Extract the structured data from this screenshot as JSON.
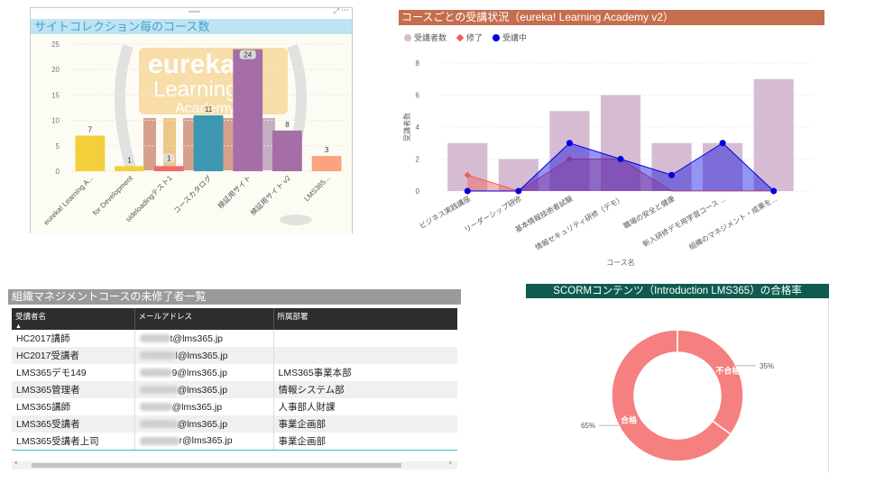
{
  "chart_data": [
    {
      "type": "bar",
      "title": "サイトコレクション毎のコース数",
      "categories": [
        "eureka! Learning A...",
        "for Development",
        "sideloadingテスト1",
        "コースカタログ",
        "検証用サイト",
        "検証用サイト v2",
        "LMS365..."
      ],
      "values": [
        7,
        1,
        1,
        11,
        24,
        8,
        3
      ],
      "colors": [
        "#f2cf3b",
        "#f2cf3b",
        "#f06a6a",
        "#3d97b2",
        "#a66ea6",
        "#a66ea6",
        "#f9a47f"
      ],
      "yticks": [
        "0",
        "5",
        "10",
        "15",
        "20",
        "25"
      ],
      "ylim": [
        0,
        25
      ],
      "grid": true
    },
    {
      "type": "bar+line",
      "title": "コースごとの受講状況（eureka! Learning Academy v2）",
      "xlabel": "コース名",
      "ylabel": "受講者数",
      "categories": [
        "ビジネス実践講座",
        "リーダーシップ研修",
        "基本情報技術者試験",
        "情報セキュリティ研修（デモ）",
        "職場の安全と健康",
        "新入研修デモ用学習コース ...",
        "組織のマネジメント・成果を..."
      ],
      "yticks": [
        "0",
        "2",
        "4",
        "6",
        "8"
      ],
      "ylim": [
        0,
        8
      ],
      "legend_position": "top-left",
      "series": [
        {
          "name": "受講者数",
          "kind": "bar",
          "color": "#d6bcd2",
          "values": [
            3,
            2,
            5,
            6,
            3,
            3,
            7
          ]
        },
        {
          "name": "修了",
          "kind": "area",
          "color": "#f05a5a",
          "values": [
            1,
            0,
            2,
            2,
            0,
            0,
            0
          ]
        },
        {
          "name": "受講中",
          "kind": "area",
          "color": "#0000e0",
          "values": [
            0,
            0,
            3,
            2,
            1,
            3,
            0
          ]
        }
      ]
    },
    {
      "type": "pie",
      "title": "SCORMコンテンツ（Introduction LMS365）の合格率",
      "slices": [
        {
          "label": "不合格",
          "value": 35,
          "pct_label": "35%",
          "color": "#f67f7f"
        },
        {
          "label": "合格",
          "value": 65,
          "pct_label": "65%",
          "color": "#f67f7f"
        }
      ]
    }
  ],
  "logo": {
    "line1": "eureka!",
    "line2": "Learning",
    "line3": "Academy"
  },
  "header_icons": {
    "grip": "drag-handle-icon",
    "focus": "focus-mode-icon",
    "more": "more-options-icon"
  },
  "table": {
    "title": "組織マネジメントコースの未修了者一覧",
    "columns": [
      "受講者名",
      "メールアドレス",
      "所属部署"
    ],
    "sort_indicator": "▲",
    "rows": [
      {
        "name": "HC2017講師",
        "email": "t@lms365.jp",
        "dept": ""
      },
      {
        "name": "HC2017受講者",
        "email": "l@lms365.jp",
        "dept": ""
      },
      {
        "name": "LMS365デモ149",
        "email": "9@lms365.jp",
        "dept": "LMS365事業本部"
      },
      {
        "name": "LMS365管理者",
        "email": "@lms365.jp",
        "dept": "情報システム部"
      },
      {
        "name": "LMS365講師",
        "email": "@lms365.jp",
        "dept": "人事部人財課"
      },
      {
        "name": "LMS365受講者",
        "email": "@lms365.jp",
        "dept": "事業企画部"
      },
      {
        "name": "LMS365受講者上司",
        "email": "r@lms365.jp",
        "dept": "事業企画部"
      }
    ],
    "scroll_left": "‹",
    "scroll_right": "›"
  }
}
